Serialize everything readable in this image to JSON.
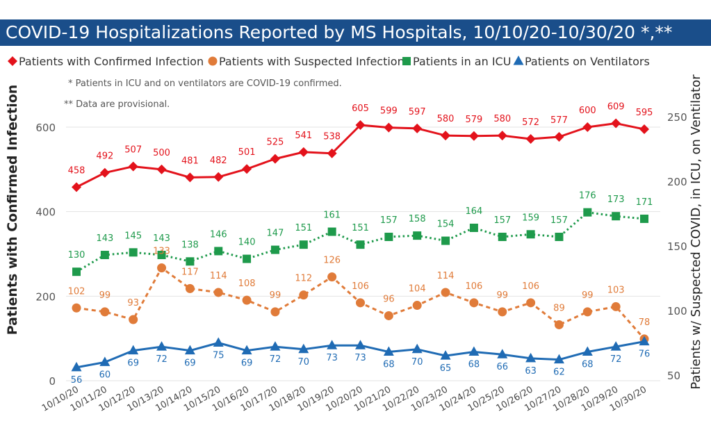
{
  "title": "COVID-19 Hospitalizations Reported by MS Hospitals, 10/10/20-10/30/20 *,**",
  "notes": [
    "* Patients in ICU and on ventilators are COVID-19 confirmed.",
    "** Data are provisional."
  ],
  "chart_data": {
    "type": "line",
    "categories": [
      "10/10/20",
      "10/11/20",
      "10/12/20",
      "10/13/20",
      "10/14/20",
      "10/15/20",
      "10/16/20",
      "10/17/20",
      "10/18/20",
      "10/19/20",
      "10/20/20",
      "10/21/20",
      "10/22/20",
      "10/23/20",
      "10/24/20",
      "10/25/20",
      "10/26/20",
      "10/27/20",
      "10/28/20",
      "10/29/20",
      "10/30/20"
    ],
    "ylabel": "Patients with Confirmed Infection",
    "y2label": "Patients w/ Suspected COVID, in ICU, on Ventilator",
    "ylim": [
      0,
      650
    ],
    "y2lim": [
      50,
      275
    ],
    "y_ticks": [
      0,
      200,
      400,
      600
    ],
    "y2_ticks": [
      50,
      100,
      150,
      200,
      250
    ],
    "legend_position": "top",
    "series": [
      {
        "name": "Patients with Confirmed Infection",
        "axis": "left",
        "marker": "diamond",
        "line": "solid",
        "color": "#e3121b",
        "values": [
          458,
          492,
          507,
          500,
          481,
          482,
          501,
          525,
          541,
          538,
          605,
          599,
          597,
          580,
          579,
          580,
          572,
          577,
          600,
          609,
          595
        ]
      },
      {
        "name": "Patients with Suspected Infection",
        "axis": "right",
        "marker": "circle",
        "line": "dashed",
        "color": "#e07b39",
        "values": [
          102,
          99,
          93,
          133,
          117,
          114,
          108,
          99,
          112,
          126,
          106,
          96,
          104,
          114,
          106,
          99,
          106,
          89,
          99,
          103,
          78
        ]
      },
      {
        "name": "Patients in an ICU",
        "axis": "right",
        "marker": "square",
        "line": "dotted",
        "color": "#1e9a4b",
        "values": [
          130,
          143,
          145,
          143,
          138,
          146,
          140,
          147,
          151,
          161,
          151,
          157,
          158,
          154,
          164,
          157,
          159,
          157,
          176,
          173,
          171
        ]
      },
      {
        "name": "Patients on Ventilators",
        "axis": "right",
        "marker": "triangle",
        "line": "solid",
        "color": "#1f6bb4",
        "values": [
          56,
          60,
          69,
          72,
          69,
          75,
          69,
          72,
          70,
          73,
          73,
          68,
          70,
          65,
          68,
          66,
          63,
          62,
          68,
          72,
          76
        ]
      }
    ]
  }
}
